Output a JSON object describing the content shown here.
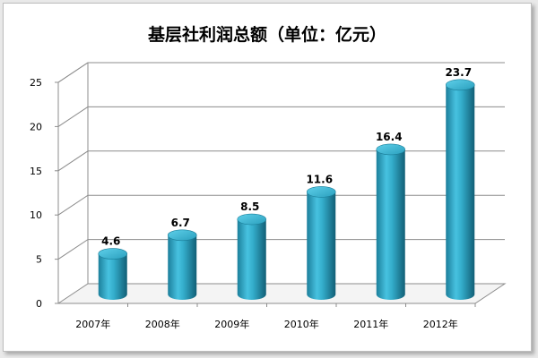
{
  "chart_data": {
    "type": "bar",
    "title": "基层社利润总额（单位：亿元）",
    "categories": [
      "2007年",
      "2008年",
      "2009年",
      "2010年",
      "2011年",
      "2012年"
    ],
    "values": [
      4.6,
      6.7,
      8.5,
      11.6,
      16.4,
      23.7
    ],
    "value_labels": [
      "4.6",
      "6.7",
      "8.5",
      "11.6",
      "16.4",
      "23.7"
    ],
    "yticks": [
      "0",
      "5",
      "10",
      "15",
      "20",
      "25"
    ],
    "ylim": [
      0,
      25
    ],
    "xlabel": "",
    "ylabel": "",
    "grid": true,
    "legend": "none",
    "bar_style": "3d-cylinder",
    "bar_color": "#2aa4c4"
  }
}
